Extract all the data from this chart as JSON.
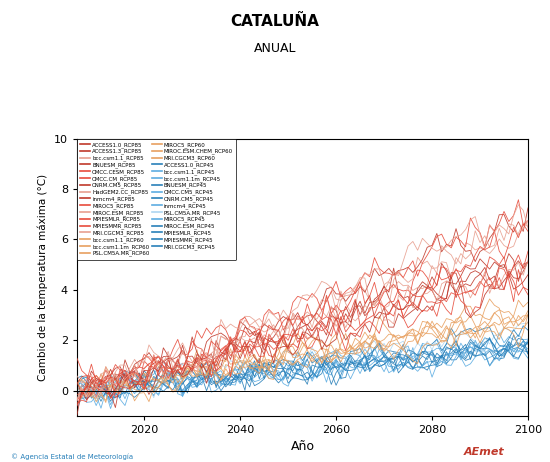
{
  "title": "CATALUÑA",
  "subtitle": "ANUAL",
  "xlabel": "Año",
  "ylabel": "Cambio de la temperatura máxima (°C)",
  "xlim": [
    2006,
    2100
  ],
  "ylim": [
    -1,
    10
  ],
  "yticks": [
    0,
    2,
    4,
    6,
    8,
    10
  ],
  "xticks": [
    2020,
    2040,
    2060,
    2080,
    2100
  ],
  "x_start": 2006,
  "x_end": 2100,
  "legend_left": [
    [
      "ACCESS1.0_RCP85",
      "#c0392b"
    ],
    [
      "ACCESS1.3_RCP85",
      "#c0392b"
    ],
    [
      "bcc.csm1.1_RCP85",
      "#e8a090"
    ],
    [
      "BNUESM_RCP85",
      "#c0392b"
    ],
    [
      "CMCC.CESM_RCP85",
      "#e74c3c"
    ],
    [
      "CMCC.CM_RCP85",
      "#e74c3c"
    ],
    [
      "CNRM.CM5_RCP85",
      "#c0392b"
    ],
    [
      "HadGEM2.CC_RCP85",
      "#e8a090"
    ],
    [
      "inmcm4_RCP85",
      "#c0392b"
    ],
    [
      "MIROC5_RCP85",
      "#e74c3c"
    ],
    [
      "MIROC.ESM_RCP85",
      "#e8a090"
    ],
    [
      "MPIESMLR_RCP85",
      "#e74c3c"
    ],
    [
      "MPIESMMR_RCP85",
      "#e74c3c"
    ],
    [
      "MRI.CGCM3_RCP85",
      "#e8a090"
    ],
    [
      "bcc.csm1.1_RCP60",
      "#e8a060"
    ],
    [
      "bcc.csm1.1m_RCP60",
      "#e8a060"
    ],
    [
      "PSL.CM5A.MR_RCP60",
      "#e8a060"
    ]
  ],
  "legend_right": [
    [
      "MIROC5_RCP60",
      "#e8a060"
    ],
    [
      "MIROC.ESM.CHEM_RCP60",
      "#e8a060"
    ],
    [
      "MRI.CGCM3_RCP60",
      "#e8a060"
    ],
    [
      "ACCESS1.0_RCP45",
      "#2980b9"
    ],
    [
      "bcc.csm1.1_RCP45",
      "#5dade2"
    ],
    [
      "bcc.csm1.1m_RCP45",
      "#5dade2"
    ],
    [
      "BNUESM_RCP45",
      "#2980b9"
    ],
    [
      "CMCC.CM5_RCP45",
      "#5dade2"
    ],
    [
      "CNRM.CM5_RCP45",
      "#2980b9"
    ],
    [
      "inmcm4_RCP45",
      "#5dade2"
    ],
    [
      "PSL.CM5A.MR_RCP45",
      "#aed6f1"
    ],
    [
      "MIROC5_RCP45",
      "#5dade2"
    ],
    [
      "MIROC.ESM_RCP45",
      "#2980b9"
    ],
    [
      "MPIESMLR_RCP45",
      "#2980b9"
    ],
    [
      "MPIESMMR_RCP45",
      "#2980b9"
    ],
    [
      "MRI.CGCM3_RCP45",
      "#2980b9"
    ]
  ],
  "rcp85_params": {
    "color_main": "#c0392b",
    "color_light": "#e8a090",
    "trend_min": 4.0,
    "trend_max": 7.5,
    "noise": 0.55,
    "count": 14
  },
  "rcp60_params": {
    "color": "#e8a060",
    "trend_min": 2.5,
    "trend_max": 3.5,
    "noise": 0.45,
    "count": 6
  },
  "rcp45_params": {
    "color_main": "#2980b9",
    "color_light": "#5dade2",
    "trend_min": 1.5,
    "trend_max": 2.8,
    "noise": 0.42,
    "count": 13
  },
  "background_color": "#ffffff",
  "seed": 42
}
